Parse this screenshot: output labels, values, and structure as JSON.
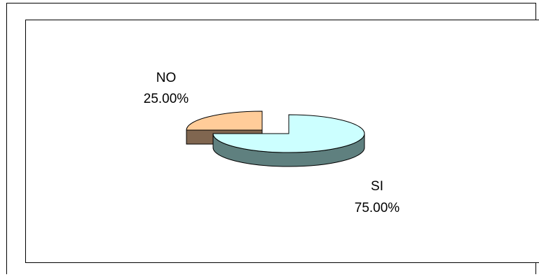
{
  "chart_data": {
    "type": "pie",
    "style": "3d-exploded",
    "categories": [
      "SI",
      "NO"
    ],
    "values": [
      75.0,
      25.0
    ],
    "labels": [
      {
        "name": "SI",
        "percent": "75.00%"
      },
      {
        "name": "NO",
        "percent": "25.00%"
      }
    ],
    "colors": {
      "SI": {
        "top": "#ccffff",
        "side": "#5f807f"
      },
      "NO": {
        "top": "#ffcc99",
        "side": "#806650"
      }
    },
    "legend": "none"
  }
}
